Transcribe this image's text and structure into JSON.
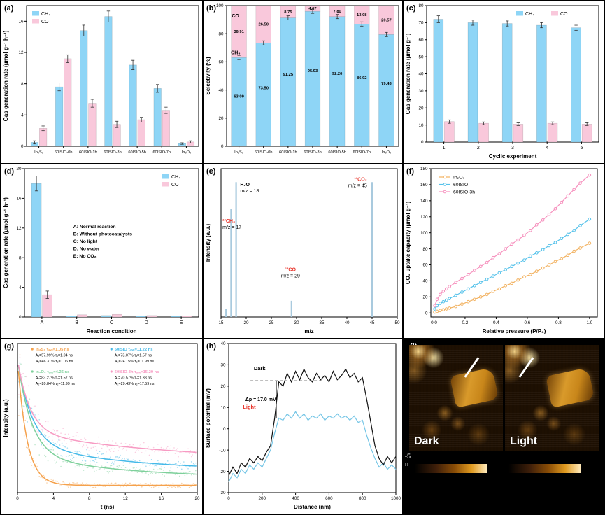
{
  "panel_labels": {
    "a": "(a)",
    "b": "(b)",
    "c": "(c)",
    "d": "(d)",
    "e": "(e)",
    "f": "(f)",
    "g": "(g)",
    "h": "(h)",
    "i": "(i)"
  },
  "chart_data": [
    {
      "panel": "a",
      "type": "bar",
      "ylabel": "Gas generation rate (μmol g⁻¹ h⁻¹)",
      "xlabel": "",
      "categories": [
        "In₂S₃",
        "60ISIO-0h",
        "60ISIO-1h",
        "60ISIO-3h",
        "60ISIO-5h",
        "60ISIO-7h",
        "In₂O₃"
      ],
      "ylim": [
        0,
        18
      ],
      "yticks": [
        0,
        4,
        8,
        12,
        16
      ],
      "series": [
        {
          "name": "CH₄",
          "color": "#8ed5f6",
          "values": [
            0.5,
            7.6,
            14.8,
            16.6,
            10.4,
            7.4,
            0.35
          ],
          "errors": [
            0.2,
            0.5,
            0.7,
            0.7,
            0.6,
            0.5,
            0.1
          ]
        },
        {
          "name": "CO",
          "color": "#f9c8db",
          "values": [
            2.3,
            11.2,
            5.5,
            2.8,
            3.4,
            4.6,
            0.55
          ],
          "errors": [
            0.3,
            0.5,
            0.5,
            0.4,
            0.3,
            0.4,
            0.15
          ]
        }
      ],
      "legend": {
        "pos": "tl"
      }
    },
    {
      "panel": "b",
      "type": "stacked_bar",
      "ylabel": "Selectivity (%)",
      "xlabel": "",
      "categories": [
        "In₂S₃",
        "60ISIO-0h",
        "60ISIO-1h",
        "60ISIO-3h",
        "60ISIO-5h",
        "60ISIO-7h",
        "In₂O₃"
      ],
      "ylim": [
        0,
        100
      ],
      "yticks": [
        0,
        20,
        40,
        60,
        80,
        100
      ],
      "series": [
        {
          "name": "CH₄",
          "color": "#8ed5f6",
          "values": [
            63.09,
            73.5,
            91.25,
            95.93,
            92.2,
            86.92,
            79.43
          ]
        },
        {
          "name": "CO",
          "color": "#f9c8db",
          "values": [
            36.91,
            26.5,
            8.75,
            4.07,
            7.8,
            13.08,
            20.57
          ]
        }
      ],
      "boundary_error": 1.5,
      "inline_labels": [
        {
          "text": "CO",
          "fx": 0.03,
          "fy": 0.06
        },
        {
          "text": "CH₄",
          "fx": 0.025,
          "fy": 0.32
        }
      ]
    },
    {
      "panel": "c",
      "type": "bar",
      "ylabel": "Gas generation rate (μmol g⁻¹)",
      "xlabel": "Cyclic experiment",
      "categories": [
        "1",
        "2",
        "3",
        "4",
        "5"
      ],
      "ylim": [
        0,
        80
      ],
      "yticks": [
        0,
        10,
        20,
        30,
        40,
        50,
        60,
        70,
        80
      ],
      "series": [
        {
          "name": "CH₄",
          "color": "#8ed5f6",
          "values": [
            72,
            70,
            69.5,
            68.5,
            67
          ],
          "errors": [
            2,
            1.5,
            1.5,
            1.5,
            1.5
          ]
        },
        {
          "name": "CO",
          "color": "#f9c8db",
          "values": [
            12,
            11,
            10.5,
            11,
            10.5
          ],
          "errors": [
            1,
            0.8,
            0.8,
            0.8,
            0.8
          ]
        }
      ],
      "legend": {
        "pos": "tr-row"
      }
    },
    {
      "panel": "d",
      "type": "bar",
      "ylabel": "Gas generation rate (μmol g⁻¹ h⁻¹)",
      "xlabel": "Reaction condition",
      "categories": [
        "A",
        "B",
        "C",
        "D",
        "E"
      ],
      "ylim": [
        0,
        20
      ],
      "yticks": [
        0,
        4,
        8,
        12,
        16,
        20
      ],
      "series": [
        {
          "name": "CH₄",
          "color": "#8ed5f6",
          "values": [
            18,
            0.15,
            0.2,
            0.12,
            0.1
          ],
          "errors": [
            1,
            0,
            0,
            0,
            0
          ]
        },
        {
          "name": "CO",
          "color": "#f9c8db",
          "values": [
            3,
            0.3,
            0.35,
            0.2,
            0.15
          ],
          "errors": [
            0.5,
            0,
            0,
            0,
            0
          ]
        }
      ],
      "legend": {
        "pos": "tr"
      },
      "note_lines": [
        "A: Normal reaction",
        "B: Without photocatalysts",
        "C: No light",
        "D: No water",
        "E: No CO₂"
      ]
    },
    {
      "panel": "e",
      "type": "sticks",
      "ylabel": "Intensity (a.u.)",
      "xlabel": "m/z",
      "xlim": [
        15,
        50
      ],
      "xticks": [
        15,
        20,
        25,
        30,
        35,
        40,
        45,
        50
      ],
      "color": "#a9cade",
      "peaks": [
        {
          "mz": 16,
          "h": 0.06
        },
        {
          "mz": 17,
          "h": 0.8
        },
        {
          "mz": 18,
          "h": 1.0
        },
        {
          "mz": 29,
          "h": 0.12
        },
        {
          "mz": 45,
          "h": 1.0
        }
      ],
      "annotations": [
        {
          "anchor": "start",
          "x": 15.3,
          "y": 0.7,
          "lines": [
            {
              "text": "¹³CH₄",
              "color": "#e8342a"
            },
            {
              "text": "m/z = 17",
              "color": "#000000"
            }
          ]
        },
        {
          "anchor": "start",
          "x": 18.8,
          "y": 0.97,
          "lines": [
            {
              "text": "H₂O",
              "color": "#000000"
            },
            {
              "text": "m/z = 18",
              "color": "#000000"
            }
          ]
        },
        {
          "anchor": "middle",
          "x": 28.8,
          "y": 0.34,
          "lines": [
            {
              "text": "¹³CO",
              "color": "#e8342a"
            },
            {
              "text": "m/z = 29",
              "color": "#000000"
            }
          ]
        },
        {
          "anchor": "end",
          "x": 44.0,
          "y": 1.01,
          "lines": [
            {
              "text": "¹³CO₂",
              "color": "#e8342a"
            },
            {
              "text": "m/z = 45",
              "color": "#000000"
            }
          ]
        }
      ]
    },
    {
      "panel": "f",
      "type": "line",
      "ylabel": "CO₂ uptake capacity (μmol g⁻¹)",
      "xlabel": "Relative pressure (P/P₀)",
      "xlim": [
        -0.02,
        1.05
      ],
      "xticks": [
        0,
        0.2,
        0.4,
        0.6,
        0.8,
        1.0
      ],
      "xtick_labels": [
        "0.0",
        "0.2",
        "0.4",
        "0.6",
        "0.8",
        "1.0"
      ],
      "ylim": [
        -5,
        180
      ],
      "yticks": [
        0,
        20,
        40,
        60,
        80,
        100,
        120,
        140,
        160,
        180
      ],
      "x": [
        0.005,
        0.02,
        0.04,
        0.06,
        0.08,
        0.1,
        0.14,
        0.18,
        0.22,
        0.26,
        0.3,
        0.34,
        0.38,
        0.42,
        0.46,
        0.5,
        0.54,
        0.58,
        0.62,
        0.66,
        0.7,
        0.74,
        0.78,
        0.82,
        0.86,
        0.9,
        0.94,
        1.0
      ],
      "series": [
        {
          "name": "In₂O₃",
          "color": "#f2b261",
          "values": [
            1,
            2,
            3,
            4,
            5,
            6,
            8,
            11,
            14,
            17,
            20,
            23,
            27,
            30,
            34,
            37,
            41,
            45,
            48,
            52,
            56,
            60,
            64,
            68,
            72,
            77,
            81,
            87
          ]
        },
        {
          "name": "60ISIO",
          "color": "#56c2ea",
          "values": [
            5,
            9,
            12,
            14,
            16,
            18,
            22,
            26,
            30,
            34,
            38,
            42,
            46,
            50,
            54,
            58,
            62,
            66,
            71,
            75,
            79,
            84,
            88,
            93,
            98,
            103,
            109,
            117
          ]
        },
        {
          "name": "60ISIO-3h",
          "color": "#f690bd",
          "values": [
            9,
            17,
            23,
            27,
            30,
            33,
            38,
            43,
            48,
            53,
            58,
            63,
            69,
            74,
            80,
            86,
            91,
            97,
            103,
            110,
            116,
            123,
            130,
            138,
            146,
            154,
            162,
            172
          ]
        }
      ]
    },
    {
      "panel": "g",
      "type": "decay",
      "ylabel": "Intensity (a.u.)",
      "xlabel": "t (ns)",
      "xlim": [
        0,
        20
      ],
      "xticks": [
        0,
        4,
        8,
        12,
        16,
        20
      ],
      "series": [
        {
          "name": "In₂S₃",
          "tau_label": "τₐᵥₑ=1.05 ns",
          "color": "#f5a14c",
          "A1": 57.99,
          "t1": 1.04,
          "A2": 46.31,
          "t2": 1.06,
          "baseline": 0.055,
          "legend_lines": [
            "A₁=57.99%  τ₁=1.04 ns",
            "A₂=46.31%  τ₂=1.06 ns"
          ]
        },
        {
          "name": "60ISIO",
          "tau_label": "τₐᵥₑ=11.22 ns",
          "color": "#45b9e8",
          "A1": 73.07,
          "t1": 1.57,
          "A2": 24.15,
          "t2": 11.99,
          "baseline": 0.16,
          "legend_lines": [
            "A₁=73.07%  τ₁=1.57 ns",
            "A₂=24.15%  τ₂=11.99 ns"
          ]
        },
        {
          "name": "In₂O₃",
          "tau_label": "τₐᵥₑ=4.26 ns",
          "color": "#7ed09b",
          "A1": 83.27,
          "t1": 1.57,
          "A2": 20.84,
          "t2": 11.99,
          "baseline": 0.105,
          "legend_lines": [
            "A₁=83.27%  τ₁=1.57 ns",
            "A₂=20.84%  τ₂=11.99 ns"
          ]
        },
        {
          "name": "60ISIO-3h",
          "tau_label": "τₐᵥₑ=15.29 ns",
          "color": "#f79bc3",
          "A1": 70.57,
          "t1": 1.38,
          "A2": 29.43,
          "t2": 17.59,
          "baseline": 0.23,
          "legend_lines": [
            "A₁=70.57%  τ₁=1.38 ns",
            "A₂=29.43%  τ₂=17.59 ns"
          ]
        }
      ]
    },
    {
      "panel": "h",
      "type": "profile",
      "ylabel": "Surface potential (mV)",
      "xlabel": "Distance (nm)",
      "xlim": [
        0,
        1000
      ],
      "xticks": [
        0,
        200,
        400,
        600,
        800,
        1000
      ],
      "ylim": [
        -30,
        40
      ],
      "yticks": [
        -30,
        -20,
        -10,
        0,
        10,
        20,
        30,
        40
      ],
      "step": 25,
      "dark_color": "#111111",
      "light_color": "#76c6e6",
      "dark_values": [
        -22,
        -18,
        -21,
        -16,
        -18,
        -14,
        -16,
        -13,
        -15,
        -11,
        -8,
        5,
        22,
        20,
        26,
        22,
        27,
        23,
        28,
        24,
        22,
        26,
        23,
        25,
        22,
        27,
        23,
        25,
        28,
        24,
        26,
        22,
        24,
        14,
        3,
        -8,
        -14,
        -17,
        -13,
        -16,
        -13
      ],
      "light_values": [
        -25,
        -21,
        -23,
        -19,
        -21,
        -17,
        -19,
        -16,
        -18,
        -14,
        -10,
        -2,
        5,
        4,
        7,
        5,
        8,
        5,
        7,
        4,
        6,
        5,
        7,
        4,
        6,
        5,
        7,
        5,
        6,
        4,
        6,
        3,
        4,
        -3,
        -9,
        -14,
        -18,
        -16,
        -19,
        -17,
        -19
      ],
      "ref_dark": {
        "y": 22.5,
        "x1": 130,
        "x2": 560,
        "label": "Dark",
        "label_x": 150,
        "label_y": 27.5
      },
      "ref_light": {
        "y": 5,
        "x1": 80,
        "x2": 560,
        "label": "Light",
        "label_x": 85,
        "label_y": 9.5,
        "color": "#e8342a"
      },
      "delta": {
        "text": "Δp = 17.0 mV",
        "x": 100,
        "y": 13
      },
      "connector_x": 285
    }
  ],
  "panel_i": {
    "images": [
      {
        "caption": "Dark"
      },
      {
        "caption": "Light"
      }
    ],
    "side_texts": [
      "-5",
      "n"
    ]
  }
}
